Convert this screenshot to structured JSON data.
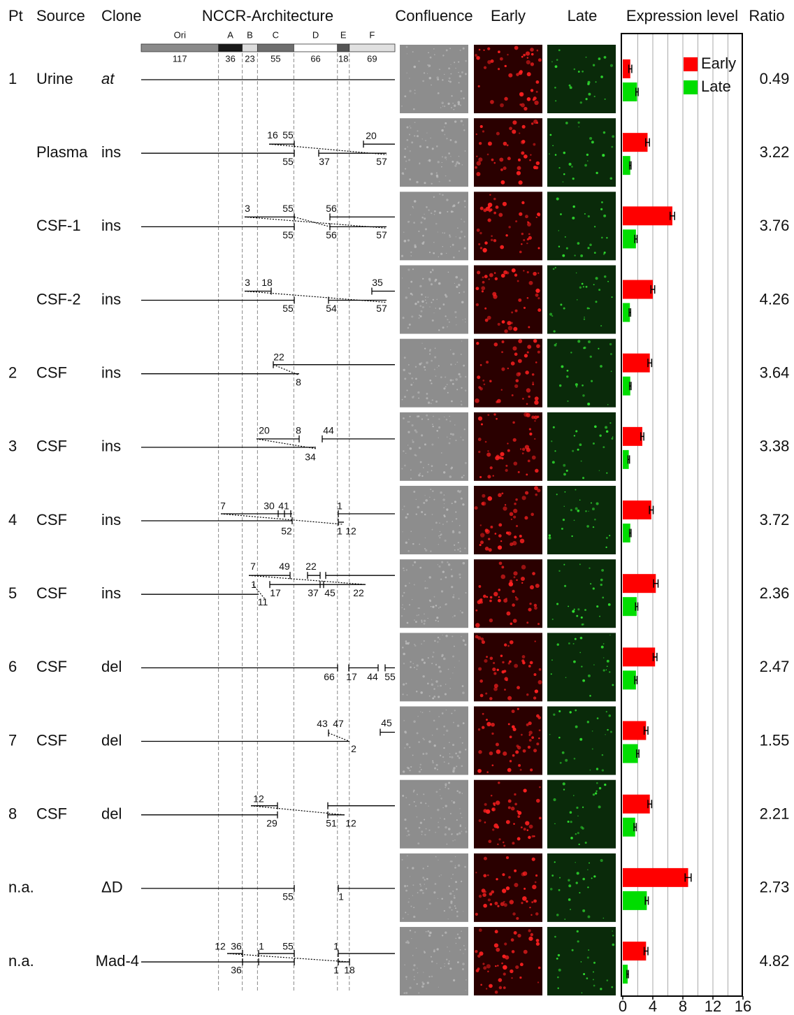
{
  "header": {
    "pt": "Pt",
    "source": "Source",
    "clone": "Clone",
    "nccr": "NCCR-Architecture",
    "confluence": "Confluence",
    "early": "Early",
    "late": "Late",
    "expression": "Expression level",
    "ratio": "Ratio"
  },
  "nccr_blocks": [
    {
      "name": "Ori",
      "length": 117,
      "color": "#8a8a8a"
    },
    {
      "name": "A",
      "length": 36,
      "color": "#1a1a1a"
    },
    {
      "name": "B",
      "length": 23,
      "color": "#dcdcdc"
    },
    {
      "name": "C",
      "length": 55,
      "color": "#6e6e6e"
    },
    {
      "name": "D",
      "length": 66,
      "color": "#ffffff"
    },
    {
      "name": "E",
      "length": 18,
      "color": "#555555"
    },
    {
      "name": "F",
      "length": 69,
      "color": "#e0e0e0"
    }
  ],
  "rows": [
    {
      "pt": "1",
      "source": "Urine",
      "clone": "at",
      "ratio": 0.49,
      "nccr_labels": []
    },
    {
      "source": "Plasma",
      "clone": "ins",
      "ratio": 3.22,
      "nccr_labels": [
        16,
        55,
        20,
        55,
        37,
        57
      ]
    },
    {
      "source": "CSF-1",
      "clone": "ins",
      "ratio": 3.76,
      "nccr_labels": [
        3,
        55,
        56,
        55,
        56,
        57
      ]
    },
    {
      "source": "CSF-2",
      "clone": "ins",
      "ratio": 4.26,
      "nccr_labels": [
        3,
        18,
        35,
        55,
        54,
        57
      ]
    },
    {
      "pt": "2",
      "source": "CSF",
      "clone": "ins",
      "ratio": 3.64,
      "nccr_labels": [
        22,
        8
      ]
    },
    {
      "pt": "3",
      "source": "CSF",
      "clone": "ins",
      "ratio": 3.38,
      "nccr_labels": [
        20,
        8,
        44,
        34
      ]
    },
    {
      "pt": "4",
      "source": "CSF",
      "clone": "ins",
      "ratio": 3.72,
      "nccr_labels": [
        7,
        30,
        41,
        1,
        52,
        1,
        12
      ]
    },
    {
      "pt": "5",
      "source": "CSF",
      "clone": "ins",
      "ratio": 2.36,
      "nccr_labels": [
        7,
        49,
        22,
        1,
        17,
        37,
        45,
        22,
        11
      ]
    },
    {
      "pt": "6",
      "source": "CSF",
      "clone": "del",
      "ratio": 2.47,
      "nccr_labels": [
        66,
        17,
        44,
        55
      ]
    },
    {
      "pt": "7",
      "source": "CSF",
      "clone": "del",
      "ratio": 1.55,
      "nccr_labels": [
        43,
        47,
        45,
        2
      ]
    },
    {
      "pt": "8",
      "source": "CSF",
      "clone": "del",
      "ratio": 2.21,
      "nccr_labels": [
        12,
        29,
        51,
        12
      ]
    },
    {
      "pt": "n.a.",
      "clone": "ΔD",
      "ratio": 2.73,
      "nccr_labels": [
        55,
        1
      ]
    },
    {
      "pt": "n.a.",
      "clone": "Mad-4",
      "ratio": 4.82,
      "nccr_labels": [
        12,
        36,
        1,
        55,
        1,
        36,
        1,
        18
      ]
    }
  ],
  "chart_data": {
    "type": "bar",
    "orientation": "horizontal",
    "series": [
      {
        "name": "Early",
        "color": "#ff0000",
        "values": [
          1.0,
          3.3,
          6.6,
          4.0,
          3.6,
          2.6,
          3.8,
          4.4,
          4.3,
          3.1,
          3.6,
          8.7,
          3.1
        ],
        "errors": [
          0.2,
          0.25,
          0.3,
          0.25,
          0.25,
          0.2,
          0.25,
          0.3,
          0.25,
          0.25,
          0.25,
          0.4,
          0.25
        ]
      },
      {
        "name": "Late",
        "color": "#00dd00",
        "values": [
          1.9,
          1.0,
          1.75,
          0.95,
          1.0,
          0.8,
          1.0,
          1.85,
          1.75,
          2.0,
          1.65,
          3.2,
          0.65
        ],
        "errors": [
          0.15,
          0.1,
          0.15,
          0.1,
          0.1,
          0.1,
          0.1,
          0.15,
          0.15,
          0.15,
          0.15,
          0.2,
          0.1
        ]
      }
    ],
    "xlim": [
      0,
      16
    ],
    "xticks": [
      0,
      4,
      8,
      12,
      16
    ],
    "xgrid": [
      2,
      4,
      6,
      8,
      10,
      12,
      14
    ],
    "legend": "top-right"
  }
}
